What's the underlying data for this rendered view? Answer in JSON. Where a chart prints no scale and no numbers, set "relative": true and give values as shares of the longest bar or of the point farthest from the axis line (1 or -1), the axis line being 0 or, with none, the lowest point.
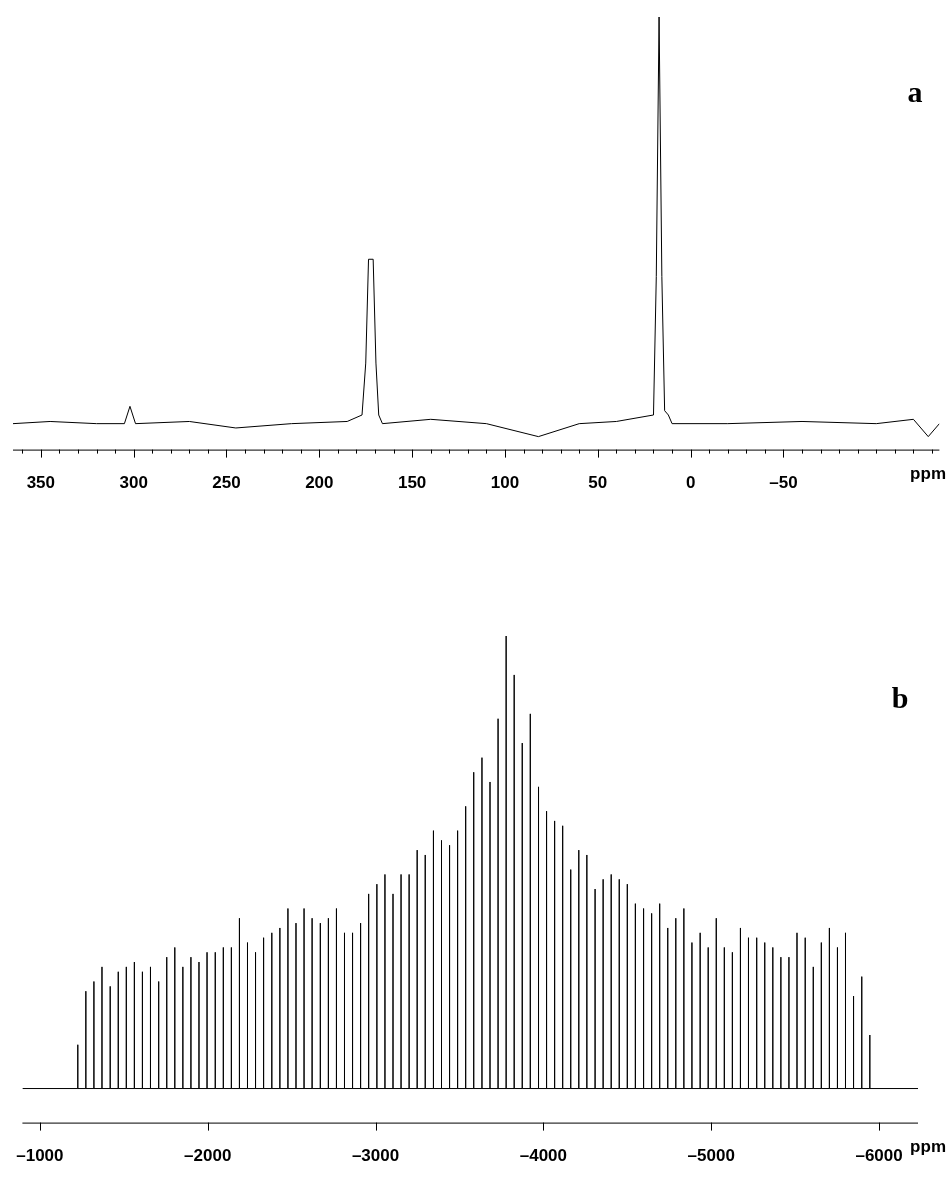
{
  "chart_data": [
    {
      "type": "line",
      "relative": true,
      "annotations": [
        "a"
      ],
      "xlabel": "ppm",
      "xlim": [
        365,
        -134
      ],
      "xticks": [
        {
          "value": 360,
          "label": null
        },
        350,
        {
          "value": 340,
          "label": null
        },
        {
          "value": 330,
          "label": null
        },
        {
          "value": 320,
          "label": null
        },
        {
          "value": 310,
          "label": null
        },
        300,
        {
          "value": 290,
          "label": null
        },
        {
          "value": 280,
          "label": null
        },
        {
          "value": 270,
          "label": null
        },
        {
          "value": 260,
          "label": null
        },
        250,
        {
          "value": 240,
          "label": null
        },
        {
          "value": 230,
          "label": null
        },
        {
          "value": 220,
          "label": null
        },
        {
          "value": 210,
          "label": null
        },
        200,
        {
          "value": 190,
          "label": null
        },
        {
          "value": 180,
          "label": null
        },
        {
          "value": 170,
          "label": null
        },
        {
          "value": 160,
          "label": null
        },
        150,
        {
          "value": 140,
          "label": null
        },
        {
          "value": 130,
          "label": null
        },
        {
          "value": 120,
          "label": null
        },
        {
          "value": 110,
          "label": null
        },
        100,
        {
          "value": 90,
          "label": null
        },
        {
          "value": 80,
          "label": null
        },
        {
          "value": 70,
          "label": null
        },
        {
          "value": 60,
          "label": null
        },
        50,
        {
          "value": 40,
          "label": null
        },
        {
          "value": 30,
          "label": null
        },
        {
          "value": 20,
          "label": null
        },
        {
          "value": 10,
          "label": null
        },
        0,
        {
          "value": -10,
          "label": null
        },
        {
          "value": -20,
          "label": null
        },
        {
          "value": -30,
          "label": null
        },
        {
          "value": -40,
          "label": null
        },
        {
          "value": -50,
          "label": "–50"
        },
        {
          "value": -60,
          "label": null
        },
        {
          "value": -70,
          "label": null
        },
        {
          "value": -80,
          "label": null
        },
        {
          "value": -90,
          "label": null
        },
        {
          "value": -100,
          "label": null
        },
        {
          "value": -110,
          "label": null
        },
        {
          "value": -120,
          "label": null
        },
        {
          "value": -130,
          "label": null
        }
      ],
      "series": [
        {
          "color": "#000000",
          "x": [
            365,
            345,
            320,
            305,
            302,
            299,
            270,
            245,
            215,
            185,
            177,
            175,
            173.5,
            171,
            169.5,
            168,
            166,
            140,
            110,
            82,
            60,
            40,
            20,
            18.5,
            17,
            15.5,
            14,
            12,
            10,
            -20,
            -60,
            -100,
            -120,
            -128,
            -134
          ],
          "values": [
            0.06,
            0.065,
            0.06,
            0.06,
            0.1,
            0.06,
            0.065,
            0.05,
            0.06,
            0.065,
            0.08,
            0.2,
            0.44,
            0.44,
            0.2,
            0.08,
            0.06,
            0.07,
            0.06,
            0.03,
            0.06,
            0.065,
            0.08,
            0.4,
            1,
            0.4,
            0.09,
            0.08,
            0.06,
            0.06,
            0.065,
            0.06,
            0.07,
            0.03,
            0.06
          ]
        }
      ]
    },
    {
      "type": "line",
      "relative": true,
      "annotations": [
        "b"
      ],
      "xlabel": "ppm",
      "xlim": [
        -896,
        -6232
      ],
      "xticks": [
        {
          "value": -1000,
          "label": "–1000"
        },
        {
          "value": -2000,
          "label": "–2000"
        },
        {
          "value": -3000,
          "label": "–3000"
        },
        {
          "value": -4000,
          "label": "–4000"
        },
        {
          "value": -5000,
          "label": "–5000"
        },
        {
          "value": -6000,
          "label": "–6000"
        }
      ],
      "series": [
        {
          "color": "#000000",
          "x": [
            -896,
            -1226,
            -1226,
            -1226,
            -1274,
            -1274,
            -1274,
            -1322,
            -1322,
            -1322,
            -1370,
            -1370,
            -1370,
            -1419,
            -1419,
            -1419,
            -1467,
            -1467,
            -1467,
            -1515,
            -1515,
            -1515,
            -1563,
            -1563,
            -1563,
            -1611,
            -1611,
            -1611,
            -1659,
            -1659,
            -1659,
            -1708,
            -1708,
            -1708,
            -1756,
            -1756,
            -1756,
            -1804,
            -1804,
            -1804,
            -1852,
            -1852,
            -1852,
            -1900,
            -1900,
            -1900,
            -1948,
            -1948,
            -1948,
            -1996,
            -1996,
            -1996,
            -2045,
            -2045,
            -2045,
            -2093,
            -2093,
            -2093,
            -2141,
            -2141,
            -2141,
            -2189,
            -2189,
            -2189,
            -2237,
            -2237,
            -2237,
            -2285,
            -2285,
            -2285,
            -2333,
            -2333,
            -2333,
            -2382,
            -2382,
            -2382,
            -2430,
            -2430,
            -2430,
            -2478,
            -2478,
            -2478,
            -2526,
            -2526,
            -2526,
            -2574,
            -2574,
            -2574,
            -2622,
            -2622,
            -2622,
            -2671,
            -2671,
            -2671,
            -2719,
            -2719,
            -2719,
            -2767,
            -2767,
            -2767,
            -2815,
            -2815,
            -2815,
            -2863,
            -2863,
            -2863,
            -2911,
            -2911,
            -2911,
            -2959,
            -2959,
            -2959,
            -3008,
            -3008,
            -3008,
            -3056,
            -3056,
            -3056,
            -3104,
            -3104,
            -3104,
            -3152,
            -3152,
            -3152,
            -3200,
            -3200,
            -3200,
            -3248,
            -3248,
            -3248,
            -3296,
            -3296,
            -3296,
            -3345,
            -3345,
            -3345,
            -3393,
            -3393,
            -3393,
            -3441,
            -3441,
            -3441,
            -3489,
            -3489,
            -3489,
            -3537,
            -3537,
            -3537,
            -3585,
            -3585,
            -3585,
            -3634,
            -3634,
            -3634,
            -3682,
            -3682,
            -3682,
            -3730,
            -3730,
            -3730,
            -3778,
            -3778,
            -3778,
            -3826,
            -3826,
            -3826,
            -3874,
            -3874,
            -3874,
            -3922,
            -3922,
            -3922,
            -3971,
            -3971,
            -3971,
            -4019,
            -4019,
            -4019,
            -4067,
            -4067,
            -4067,
            -4115,
            -4115,
            -4115,
            -4163,
            -4163,
            -4163,
            -4211,
            -4211,
            -4211,
            -4259,
            -4259,
            -4259,
            -4308,
            -4308,
            -4308,
            -4356,
            -4356,
            -4356,
            -4404,
            -4404,
            -4404,
            -4452,
            -4452,
            -4452,
            -4500,
            -4500,
            -4500,
            -4548,
            -4548,
            -4548,
            -4597,
            -4597,
            -4597,
            -4645,
            -4645,
            -4645,
            -4693,
            -4693,
            -4693,
            -4741,
            -4741,
            -4741,
            -4789,
            -4789,
            -4789,
            -4837,
            -4837,
            -4837,
            -4885,
            -4885,
            -4885,
            -4934,
            -4934,
            -4934,
            -4982,
            -4982,
            -4982,
            -5030,
            -5030,
            -5030,
            -5078,
            -5078,
            -5078,
            -5126,
            -5126,
            -5126,
            -5174,
            -5174,
            -5174,
            -5222,
            -5222,
            -5222,
            -5271,
            -5271,
            -5271,
            -5319,
            -5319,
            -5319,
            -5367,
            -5367,
            -5367,
            -5415,
            -5415,
            -5415,
            -5463,
            -5463,
            -5463,
            -5511,
            -5511,
            -5511,
            -5560,
            -5560,
            -5560,
            -5608,
            -5608,
            -5608,
            -5656,
            -5656,
            -5656,
            -5704,
            -5704,
            -5704,
            -5752,
            -5752,
            -5752,
            -5800,
            -5800,
            -5800,
            -5848,
            -5848,
            -5848,
            -5897,
            -5897,
            -5897,
            -5945,
            -5945,
            -5945,
            -6232
          ],
          "values": [
            0.07,
            0.07,
            0.16,
            0.07,
            0.07,
            0.27,
            0.07,
            0.07,
            0.29,
            0.07,
            0.07,
            0.32,
            0.07,
            0.07,
            0.28,
            0.07,
            0.07,
            0.31,
            0.07,
            0.07,
            0.32,
            0.07,
            0.07,
            0.33,
            0.07,
            0.07,
            0.31,
            0.07,
            0.07,
            0.32,
            0.07,
            0.07,
            0.29,
            0.07,
            0.07,
            0.34,
            0.07,
            0.07,
            0.36,
            0.07,
            0.07,
            0.32,
            0.07,
            0.07,
            0.34,
            0.07,
            0.07,
            0.33,
            0.07,
            0.07,
            0.35,
            0.07,
            0.07,
            0.35,
            0.07,
            0.07,
            0.36,
            0.07,
            0.07,
            0.36,
            0.07,
            0.07,
            0.42,
            0.07,
            0.07,
            0.37,
            0.07,
            0.07,
            0.35,
            0.07,
            0.07,
            0.38,
            0.07,
            0.07,
            0.39,
            0.07,
            0.07,
            0.4,
            0.07,
            0.07,
            0.44,
            0.07,
            0.07,
            0.41,
            0.07,
            0.07,
            0.44,
            0.07,
            0.07,
            0.42,
            0.07,
            0.07,
            0.41,
            0.07,
            0.07,
            0.42,
            0.07,
            0.07,
            0.44,
            0.07,
            0.07,
            0.39,
            0.07,
            0.07,
            0.39,
            0.07,
            0.07,
            0.41,
            0.07,
            0.07,
            0.47,
            0.07,
            0.07,
            0.49,
            0.07,
            0.07,
            0.51,
            0.07,
            0.07,
            0.47,
            0.07,
            0.07,
            0.51,
            0.07,
            0.07,
            0.51,
            0.07,
            0.07,
            0.56,
            0.07,
            0.07,
            0.55,
            0.07,
            0.07,
            0.6,
            0.07,
            0.07,
            0.58,
            0.07,
            0.07,
            0.57,
            0.07,
            0.07,
            0.6,
            0.07,
            0.07,
            0.65,
            0.07,
            0.07,
            0.72,
            0.07,
            0.07,
            0.75,
            0.07,
            0.07,
            0.7,
            0.07,
            0.07,
            0.83,
            0.07,
            0.07,
            1,
            0.07,
            0.07,
            0.92,
            0.07,
            0.07,
            0.78,
            0.07,
            0.07,
            0.84,
            0.07,
            0.07,
            0.69,
            0.07,
            0.07,
            0.64,
            0.07,
            0.07,
            0.62,
            0.07,
            0.07,
            0.61,
            0.07,
            0.07,
            0.52,
            0.07,
            0.07,
            0.56,
            0.07,
            0.07,
            0.55,
            0.07,
            0.07,
            0.48,
            0.07,
            0.07,
            0.5,
            0.07,
            0.07,
            0.51,
            0.07,
            0.07,
            0.5,
            0.07,
            0.07,
            0.49,
            0.07,
            0.07,
            0.45,
            0.07,
            0.07,
            0.44,
            0.07,
            0.07,
            0.43,
            0.07,
            0.07,
            0.45,
            0.07,
            0.07,
            0.4,
            0.07,
            0.07,
            0.42,
            0.07,
            0.07,
            0.44,
            0.07,
            0.07,
            0.37,
            0.07,
            0.07,
            0.39,
            0.07,
            0.07,
            0.36,
            0.07,
            0.07,
            0.42,
            0.07,
            0.07,
            0.36,
            0.07,
            0.07,
            0.35,
            0.07,
            0.07,
            0.4,
            0.07,
            0.07,
            0.38,
            0.07,
            0.07,
            0.38,
            0.07,
            0.07,
            0.37,
            0.07,
            0.07,
            0.36,
            0.07,
            0.07,
            0.34,
            0.07,
            0.07,
            0.34,
            0.07,
            0.07,
            0.39,
            0.07,
            0.07,
            0.38,
            0.07,
            0.07,
            0.32,
            0.07,
            0.07,
            0.37,
            0.07,
            0.07,
            0.4,
            0.07,
            0.07,
            0.36,
            0.07,
            0.07,
            0.39,
            0.07,
            0.07,
            0.26,
            0.07,
            0.07,
            0.3,
            0.07,
            0.07,
            0.18,
            0.07,
            0.07
          ]
        }
      ]
    }
  ]
}
